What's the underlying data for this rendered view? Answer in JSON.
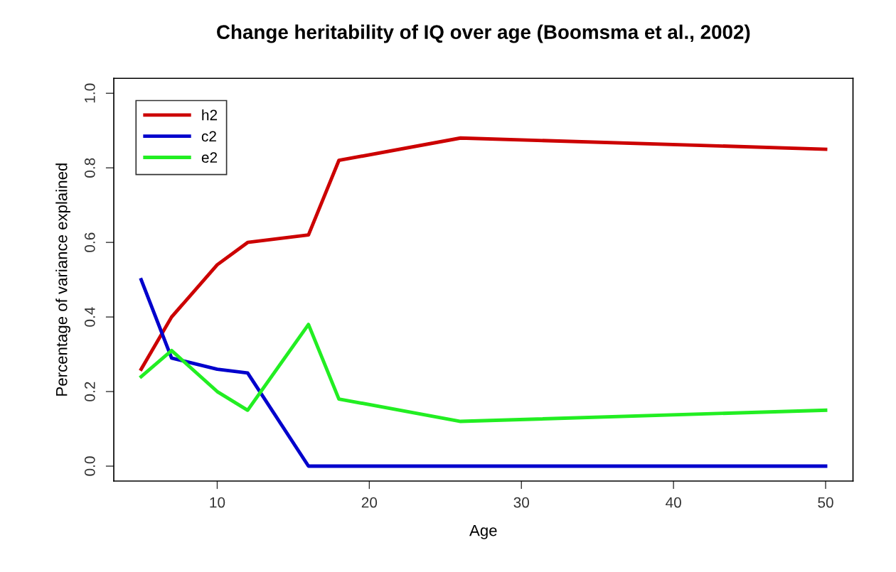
{
  "chart_data": {
    "type": "line",
    "title": "Change heritability of IQ over age (Boomsma et al., 2002)",
    "xlabel": "Age",
    "ylabel": "Percentage of variance explained",
    "x": [
      5,
      7,
      10,
      12,
      16,
      18,
      26,
      50
    ],
    "series": [
      {
        "name": "h2",
        "color": "#cc0000",
        "values": [
          0.26,
          0.4,
          0.54,
          0.6,
          0.62,
          0.82,
          0.88,
          0.85
        ]
      },
      {
        "name": "c2",
        "color": "#0000cc",
        "values": [
          0.5,
          0.29,
          0.26,
          0.25,
          0.0,
          0.0,
          0.0,
          0.0
        ]
      },
      {
        "name": "e2",
        "color": "#22ee22",
        "values": [
          0.24,
          0.31,
          0.2,
          0.15,
          0.38,
          0.18,
          0.12,
          0.15
        ]
      }
    ],
    "xlim": [
      3.2,
      51.8
    ],
    "xticks": [
      10,
      20,
      30,
      40,
      50
    ],
    "ylim": [
      -0.04,
      1.04
    ],
    "yticks": [
      {
        "value": 0,
        "label": "0.0"
      },
      {
        "value": 0.2,
        "label": "0.2"
      },
      {
        "value": 0.4,
        "label": "0.4"
      },
      {
        "value": 0.6,
        "label": "0.6"
      },
      {
        "value": 0.8,
        "label": "0.8"
      },
      {
        "value": 1,
        "label": "1.0"
      }
    ],
    "grid": false,
    "legend": "top left",
    "marker": "none",
    "line_style": "solid"
  }
}
